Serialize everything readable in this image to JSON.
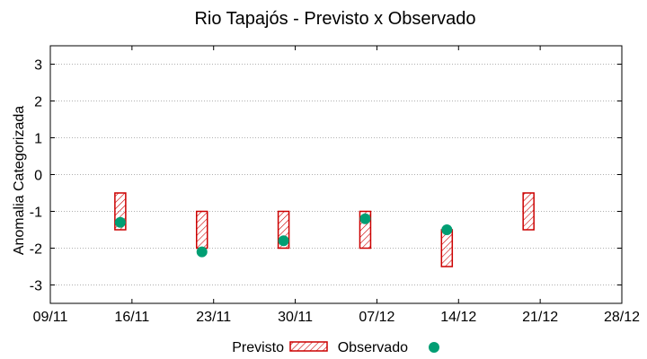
{
  "chart_data": {
    "type": "range-bar-with-points",
    "title": "Rio Tapajós - Previsto x Observado",
    "xlabel": "",
    "ylabel": "Anomalia Categorizada",
    "ylim": [
      -3.5,
      3.5
    ],
    "yticks": [
      3,
      2,
      1,
      0,
      -1,
      -2,
      -3
    ],
    "ytick_labels": [
      "3",
      "2",
      "1",
      "0",
      "-1",
      "-2",
      "-3"
    ],
    "xlim_days": [
      0,
      49
    ],
    "xticks_days": [
      0,
      7,
      14,
      21,
      28,
      35,
      42,
      49
    ],
    "xtick_labels": [
      "09/11",
      "16/11",
      "23/11",
      "30/11",
      "07/12",
      "14/12",
      "21/12",
      "28/12"
    ],
    "grid": true,
    "series": [
      {
        "name": "Previsto",
        "kind": "range",
        "color": "#cc0000",
        "points": [
          {
            "x": 6,
            "low": -1.5,
            "high": -0.5
          },
          {
            "x": 13,
            "low": -2.0,
            "high": -1.0
          },
          {
            "x": 20,
            "low": -2.0,
            "high": -1.0
          },
          {
            "x": 27,
            "low": -2.0,
            "high": -1.0
          },
          {
            "x": 34,
            "low": -2.5,
            "high": -1.5
          },
          {
            "x": 41,
            "low": -1.5,
            "high": -0.5
          }
        ]
      },
      {
        "name": "Observado",
        "kind": "point",
        "color": "#009e73",
        "points": [
          {
            "x": 6,
            "y": -1.3
          },
          {
            "x": 13,
            "y": -2.1
          },
          {
            "x": 20,
            "y": -1.8
          },
          {
            "x": 27,
            "y": -1.2
          },
          {
            "x": 34,
            "y": -1.5
          }
        ]
      }
    ],
    "legend": {
      "position": "bottom-center",
      "entries": [
        "Previsto",
        "Observado"
      ]
    }
  }
}
